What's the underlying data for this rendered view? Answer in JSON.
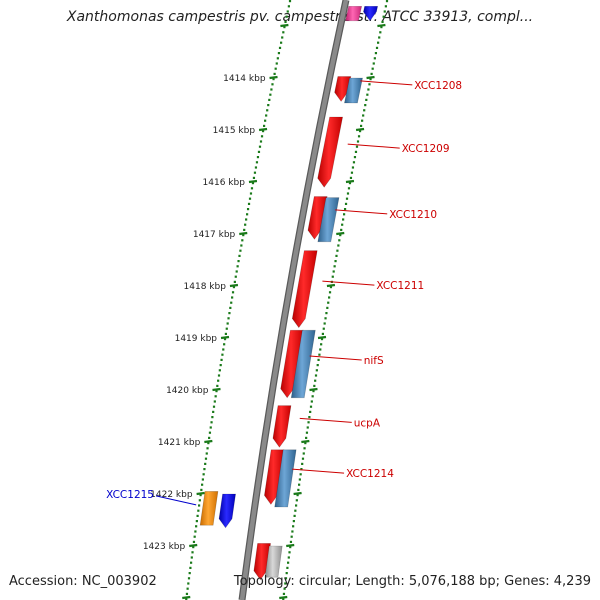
{
  "title": "Xanthomonas campestris pv. campestris str. ATCC 33913, compl...",
  "footer": {
    "accession": "Accession: NC_003902",
    "topology": "Topology: circular; Length: 5,076,188 bp; Genes: 4,239"
  },
  "axis": {
    "unit": "kbp",
    "ticks": [
      {
        "position_kbp": 1414,
        "label": "1414 kbp"
      },
      {
        "position_kbp": 1415,
        "label": "1415 kbp"
      },
      {
        "position_kbp": 1416,
        "label": "1416 kbp"
      },
      {
        "position_kbp": 1417,
        "label": "1417 kbp"
      },
      {
        "position_kbp": 1418,
        "label": "1418 kbp"
      },
      {
        "position_kbp": 1419,
        "label": "1419 kbp"
      },
      {
        "position_kbp": 1420,
        "label": "1420 kbp"
      },
      {
        "position_kbp": 1421,
        "label": "1421 kbp"
      },
      {
        "position_kbp": 1422,
        "label": "1422 kbp"
      },
      {
        "position_kbp": 1423,
        "label": "1423 kbp"
      }
    ]
  },
  "genes": [
    {
      "label": "",
      "color": "#ff3399",
      "start_kbp": 1412.62,
      "end_kbp": 1412.9
    },
    {
      "label": "",
      "color": "#0000ff",
      "start_kbp": 1412.62,
      "end_kbp": 1412.9
    },
    {
      "label": "XCC1208",
      "color": "#ff0000",
      "label_color": "#cc0000",
      "start_kbp": 1413.97,
      "end_kbp": 1414.45
    },
    {
      "label": "",
      "color": "#4a86b8",
      "start_kbp": 1414.0,
      "end_kbp": 1414.48
    },
    {
      "label": "XCC1209",
      "color": "#ff0000",
      "label_color": "#cc0000",
      "start_kbp": 1414.75,
      "end_kbp": 1416.1
    },
    {
      "label": "XCC1210",
      "color": "#ff0000",
      "label_color": "#cc0000",
      "start_kbp": 1416.28,
      "end_kbp": 1417.1
    },
    {
      "label": "",
      "color": "#4a86b8",
      "start_kbp": 1416.3,
      "end_kbp": 1417.15
    },
    {
      "label": "XCC1211",
      "color": "#ff0000",
      "label_color": "#cc0000",
      "start_kbp": 1417.32,
      "end_kbp": 1418.8
    },
    {
      "label": "nifS",
      "color": "#ff0000",
      "label_color": "#cc0000",
      "start_kbp": 1418.85,
      "end_kbp": 1420.15
    },
    {
      "label": "",
      "color": "#4a86b8",
      "start_kbp": 1418.85,
      "end_kbp": 1420.15
    },
    {
      "label": "ucpA",
      "color": "#ff0000",
      "label_color": "#cc0000",
      "start_kbp": 1420.3,
      "end_kbp": 1421.1
    },
    {
      "label": "XCC1214",
      "color": "#ff0000",
      "label_color": "#cc0000",
      "start_kbp": 1421.15,
      "end_kbp": 1422.2
    },
    {
      "label": "",
      "color": "#4a86b8",
      "start_kbp": 1421.15,
      "end_kbp": 1422.25
    },
    {
      "label": "XCC1215",
      "color": "#0000ff",
      "label_color": "#0000cc",
      "start_kbp": 1422.0,
      "end_kbp": 1422.65
    },
    {
      "label": "",
      "color": "#ff8c00",
      "start_kbp": 1421.95,
      "end_kbp": 1422.6
    },
    {
      "label": "",
      "color": "#ff0000",
      "start_kbp": 1422.95,
      "end_kbp": 1423.65
    },
    {
      "label": "",
      "color": "#b0b0b0",
      "start_kbp": 1423.0,
      "end_kbp": 1423.6
    }
  ],
  "colors": {
    "backbone": "#8a8a8a",
    "tick": "#1a7a1a",
    "forward_gene": "#ff0000",
    "reverse_gene": "#4a86b8"
  }
}
